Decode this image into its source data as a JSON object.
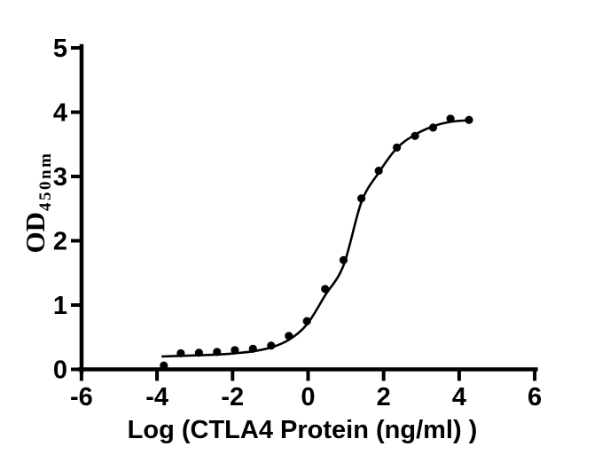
{
  "figure": {
    "background_color": "#ffffff",
    "ink_color": "#000000"
  },
  "chart_data": {
    "type": "scatter",
    "title": "",
    "xlabel": "Log (CTLA4 Protein (ng/ml) )",
    "ylabel_base": "OD",
    "ylabel_subscript": "450nm",
    "xlim": [
      -6,
      6
    ],
    "ylim": [
      0,
      5
    ],
    "xticks": [
      -6,
      -4,
      -2,
      0,
      2,
      4,
      6
    ],
    "yticks": [
      0,
      1,
      2,
      3,
      4,
      5
    ],
    "grid": false,
    "legend": "none",
    "marker": {
      "shape": "circle",
      "color": "#000000"
    },
    "line": {
      "color": "#000000"
    },
    "points": {
      "x": [
        -3.82,
        -3.37,
        -2.89,
        -2.41,
        -1.94,
        -1.46,
        -0.98,
        -0.51,
        -0.03,
        0.45,
        0.94,
        1.41,
        1.87,
        2.35,
        2.83,
        3.31,
        3.77,
        4.26
      ],
      "y": [
        0.06,
        0.25,
        0.26,
        0.27,
        0.3,
        0.32,
        0.37,
        0.52,
        0.75,
        1.25,
        1.7,
        2.66,
        3.09,
        3.45,
        3.63,
        3.76,
        3.9,
        3.88
      ]
    },
    "fit_curve": {
      "description": "sigmoidal 4PL fit line",
      "x": [
        -3.88,
        -3.37,
        -2.89,
        -2.41,
        -1.94,
        -1.46,
        -0.98,
        -0.51,
        -0.03,
        0.45,
        0.94,
        1.41,
        1.87,
        2.35,
        2.83,
        3.31,
        3.77,
        4.35
      ],
      "y": [
        0.2,
        0.21,
        0.22,
        0.23,
        0.25,
        0.28,
        0.34,
        0.46,
        0.7,
        1.15,
        1.62,
        2.6,
        3.06,
        3.44,
        3.65,
        3.78,
        3.85,
        3.88
      ]
    }
  }
}
